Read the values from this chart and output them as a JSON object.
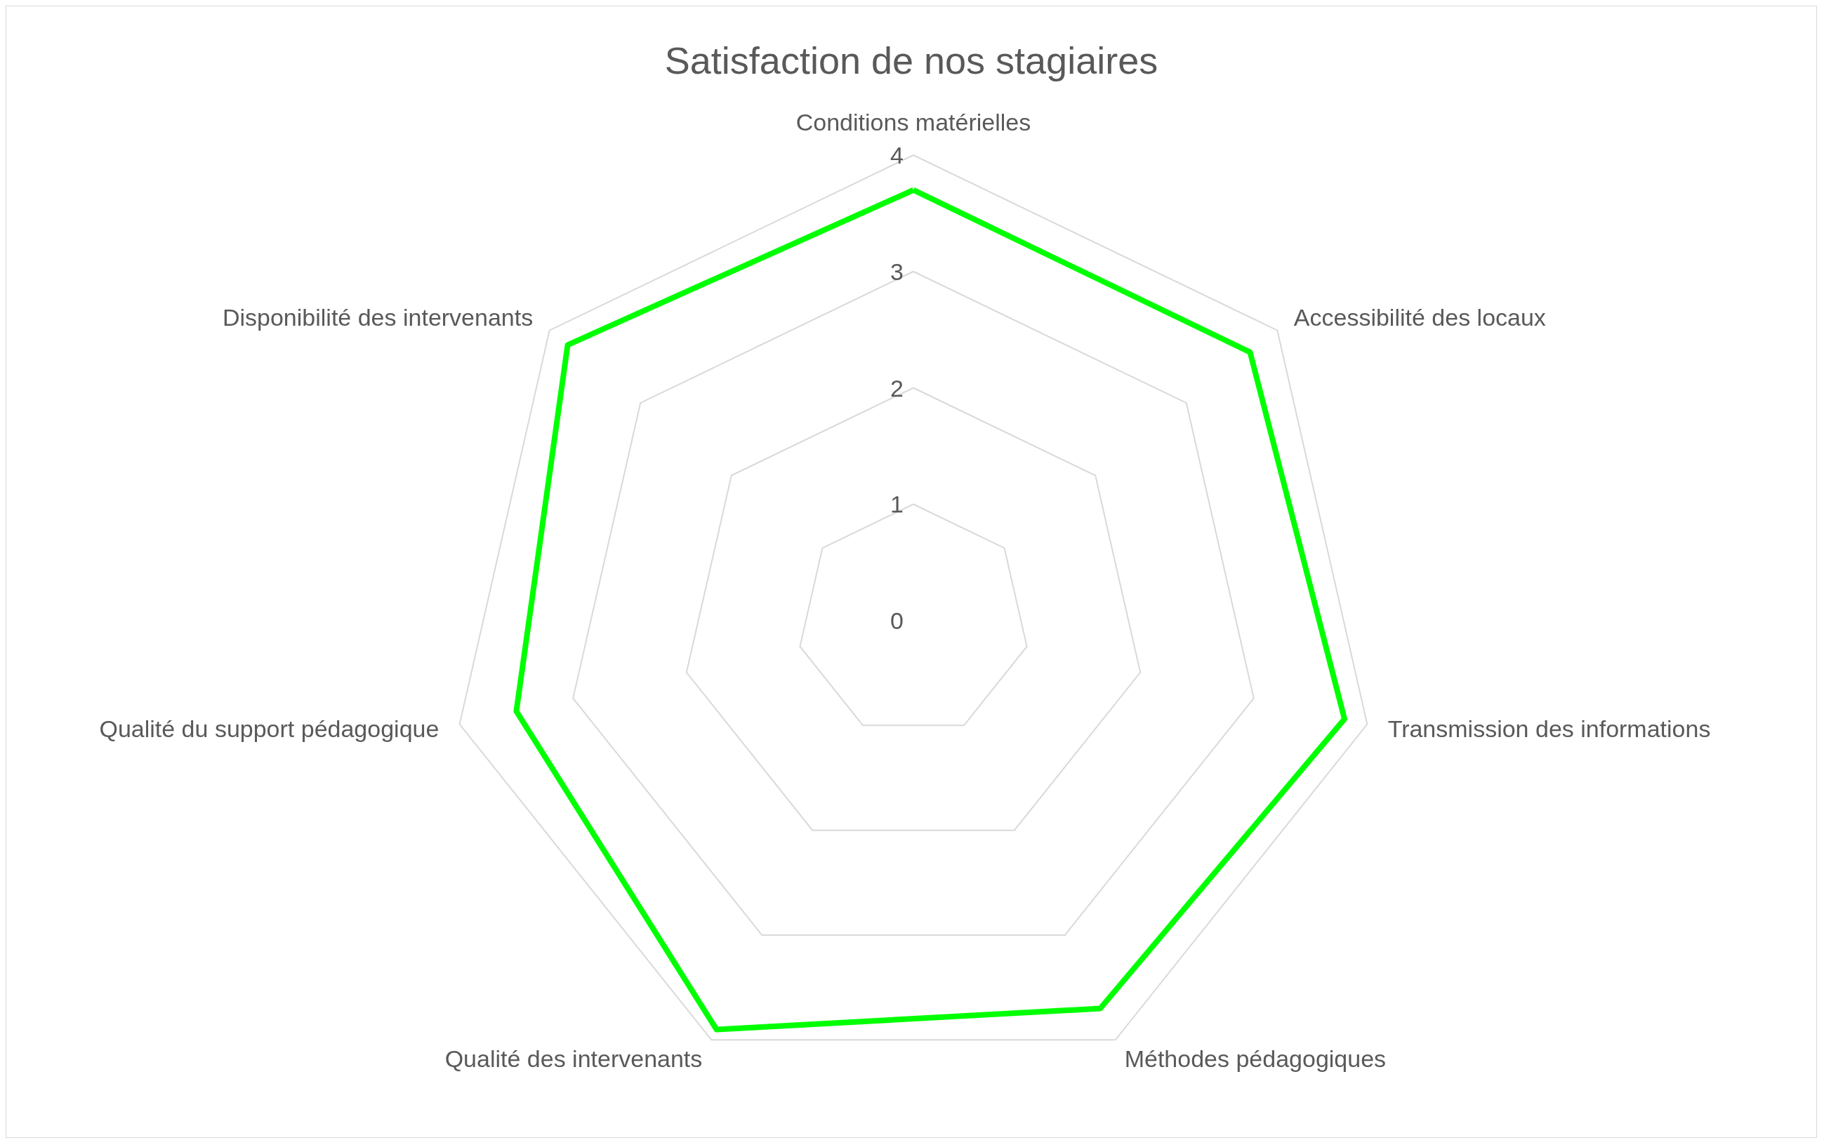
{
  "chart_data": {
    "type": "radar",
    "title": "Satisfaction de nos stagiaires",
    "categories": [
      "Conditions matérielles",
      "Accessibilité des locaux",
      "Transmission des informations",
      "Méthodes pédagogiques",
      "Qualité des intervenants",
      "Qualité du support pédagogique",
      "Disponibilité des intervenants"
    ],
    "series": [
      {
        "color": "#00ff00",
        "values": [
          3.7,
          3.7,
          3.8,
          3.7,
          3.9,
          3.5,
          3.8
        ]
      }
    ],
    "ylim": [
      0,
      4
    ],
    "yticks": [
      0,
      1,
      2,
      3,
      4
    ],
    "grid": true,
    "marker": "none"
  }
}
